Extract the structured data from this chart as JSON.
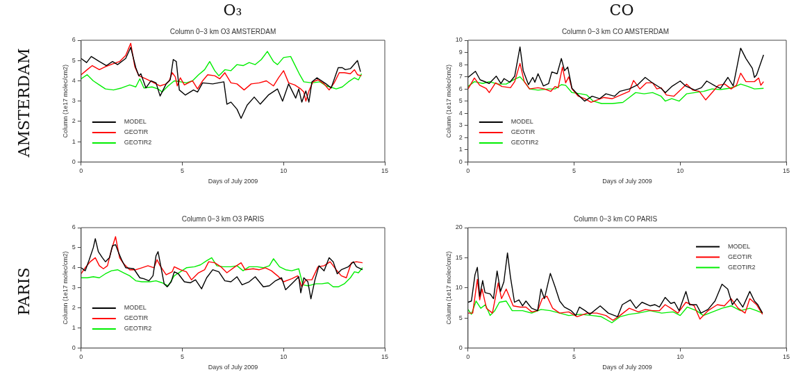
{
  "chart_data": [
    {
      "type": "line",
      "title": "Column 0−3 km O3 AMSTERDAM",
      "xlabel": "Days of July 2009",
      "ylabel": "Column (1e17 molec/cm2)",
      "xlim": [
        0,
        15
      ],
      "xticks": [
        0,
        5,
        10,
        15
      ],
      "ylim": [
        0,
        6
      ],
      "yticks": [
        0,
        1,
        2,
        3,
        4,
        5,
        6
      ],
      "grid": false,
      "legend": "bottom left",
      "marker": "none",
      "line_style": "solid",
      "annotations": [
        "O₃",
        "AMSTERDAM"
      ],
      "series": [
        {
          "name": "MODEL",
          "color": "#000000",
          "x": [
            0,
            0.27,
            0.5,
            0.9,
            1.25,
            1.55,
            1.8,
            2.2,
            2.45,
            2.7,
            2.85,
            2.95,
            3.2,
            3.45,
            3.7,
            3.9,
            4.2,
            4.4,
            4.55,
            4.7,
            4.85,
            5.15,
            5.55,
            5.75,
            6.0,
            6.5,
            7.05,
            7.2,
            7.4,
            7.7,
            7.9,
            8.2,
            8.55,
            8.85,
            9.25,
            9.7,
            9.95,
            10.25,
            10.6,
            10.75,
            10.9,
            11.1,
            11.25,
            11.4,
            11.65,
            12.1,
            12.35,
            12.7,
            12.9,
            13.05,
            13.3,
            13.65,
            13.8
          ],
          "values": [
            5.1,
            4.9,
            5.2,
            4.95,
            4.75,
            4.95,
            4.8,
            5.1,
            5.65,
            4.65,
            4.25,
            4.35,
            3.65,
            4.0,
            3.9,
            3.25,
            3.85,
            4.05,
            5.05,
            4.95,
            3.55,
            3.3,
            3.55,
            3.45,
            3.9,
            3.85,
            3.95,
            2.85,
            2.95,
            2.6,
            2.15,
            2.8,
            3.2,
            2.85,
            3.3,
            3.6,
            3.0,
            3.85,
            3.15,
            3.6,
            2.95,
            3.5,
            2.95,
            3.95,
            4.15,
            3.85,
            3.65,
            4.65,
            4.65,
            4.55,
            4.6,
            5.0,
            4.45
          ]
        },
        {
          "name": "GEOTIR",
          "color": "#ff0000",
          "x": [
            0,
            0.3,
            0.55,
            0.9,
            1.2,
            1.6,
            1.9,
            2.2,
            2.45,
            2.65,
            2.85,
            3.2,
            3.5,
            3.9,
            4.2,
            4.35,
            4.5,
            4.65,
            4.75,
            4.9,
            5.1,
            5.5,
            5.75,
            6.0,
            6.25,
            6.6,
            6.85,
            7.1,
            7.4,
            7.7,
            8.05,
            8.4,
            8.8,
            9.15,
            9.5,
            9.75,
            10.0,
            10.25,
            10.55,
            10.85,
            11.0,
            11.1,
            11.25,
            11.45,
            11.7,
            12.0,
            12.25,
            12.5,
            12.75,
            13.0,
            13.3,
            13.5,
            13.65,
            13.85
          ],
          "values": [
            4.3,
            4.55,
            4.75,
            4.55,
            4.7,
            4.85,
            4.95,
            5.25,
            5.85,
            4.7,
            4.25,
            4.1,
            3.95,
            3.75,
            3.85,
            4.0,
            4.4,
            4.2,
            3.75,
            4.15,
            3.8,
            4.0,
            3.6,
            4.0,
            4.3,
            4.25,
            4.1,
            4.4,
            3.9,
            3.85,
            3.55,
            3.85,
            3.9,
            4.0,
            3.75,
            4.15,
            4.5,
            3.9,
            3.8,
            3.6,
            3.45,
            3.0,
            3.5,
            3.95,
            4.05,
            3.85,
            3.55,
            3.9,
            4.4,
            4.4,
            4.35,
            4.55,
            4.3,
            4.25
          ]
        },
        {
          "name": "GEOTIR2",
          "color": "#00ee00",
          "x": [
            0,
            0.3,
            0.6,
            0.9,
            1.2,
            1.6,
            2.0,
            2.4,
            2.7,
            2.9,
            3.1,
            3.5,
            3.8,
            4.0,
            4.3,
            4.6,
            4.9,
            5.2,
            5.5,
            5.8,
            6.1,
            6.35,
            6.6,
            6.8,
            7.1,
            7.4,
            7.7,
            8.0,
            8.3,
            8.6,
            8.9,
            9.2,
            9.5,
            9.7,
            10.0,
            10.35,
            10.55,
            10.8,
            11.0,
            11.4,
            11.8,
            12.1,
            12.3,
            12.6,
            12.9,
            13.2,
            13.5,
            13.7,
            13.85
          ],
          "values": [
            4.1,
            4.3,
            4.0,
            3.8,
            3.6,
            3.55,
            3.65,
            3.8,
            3.7,
            4.1,
            3.65,
            3.7,
            3.6,
            3.45,
            3.75,
            4.0,
            3.95,
            3.9,
            4.0,
            4.3,
            4.55,
            4.95,
            4.5,
            4.25,
            4.55,
            4.5,
            4.8,
            4.75,
            4.9,
            4.8,
            5.05,
            5.45,
            4.95,
            4.8,
            5.15,
            5.2,
            4.8,
            4.3,
            3.95,
            3.9,
            3.95,
            3.75,
            3.7,
            3.6,
            3.7,
            3.95,
            4.15,
            4.05,
            4.35
          ]
        }
      ]
    },
    {
      "type": "line",
      "title": "Column 0−3 km CO AMSTERDAM",
      "xlabel": "Days of July 2009",
      "ylabel": "Column (1e17 molec/cm2)",
      "xlim": [
        0,
        15
      ],
      "xticks": [
        0,
        5,
        10,
        15
      ],
      "ylim": [
        0,
        10
      ],
      "yticks": [
        0,
        1,
        2,
        3,
        4,
        5,
        6,
        7,
        8,
        9,
        10
      ],
      "grid": false,
      "legend": "bottom left",
      "marker": "none",
      "line_style": "solid",
      "annotations": [
        "CO"
      ],
      "series": [
        {
          "name": "MODEL",
          "color": "#000000",
          "x": [
            0,
            0.35,
            0.57,
            1.0,
            1.33,
            1.55,
            1.7,
            1.97,
            2.2,
            2.45,
            2.6,
            2.85,
            3.05,
            3.15,
            3.3,
            3.55,
            3.8,
            3.95,
            4.2,
            4.4,
            4.55,
            4.7,
            4.9,
            5.2,
            5.5,
            5.85,
            6.2,
            6.5,
            6.9,
            7.15,
            7.6,
            8.0,
            8.35,
            8.65,
            9.1,
            9.3,
            9.6,
            10.0,
            10.25,
            10.7,
            11.0,
            11.25,
            11.65,
            11.9,
            12.25,
            12.5,
            12.85,
            13.1,
            13.4,
            13.5,
            13.6,
            13.93
          ],
          "values": [
            6.95,
            7.45,
            6.75,
            6.45,
            7.05,
            6.45,
            6.85,
            6.55,
            7.05,
            9.45,
            7.5,
            6.35,
            6.95,
            6.55,
            7.25,
            6.25,
            6.45,
            7.4,
            7.25,
            8.5,
            7.5,
            7.8,
            6.05,
            5.5,
            5.0,
            5.4,
            5.2,
            5.6,
            5.4,
            5.8,
            6.0,
            6.35,
            6.95,
            6.55,
            6.05,
            5.7,
            6.2,
            6.65,
            6.25,
            5.9,
            6.1,
            6.65,
            6.25,
            6.05,
            6.95,
            6.25,
            9.35,
            8.5,
            7.7,
            6.95,
            7.15,
            8.8
          ]
        },
        {
          "name": "GEOTIR",
          "color": "#ff0000",
          "x": [
            0,
            0.3,
            0.55,
            0.85,
            1.0,
            1.3,
            1.6,
            2.0,
            2.2,
            2.45,
            2.65,
            2.9,
            3.3,
            3.6,
            3.9,
            4.1,
            4.25,
            4.45,
            4.6,
            4.75,
            4.9,
            5.2,
            5.5,
            5.8,
            6.1,
            6.4,
            6.8,
            7.2,
            7.6,
            7.8,
            8.1,
            8.4,
            8.7,
            8.9,
            9.1,
            9.35,
            9.7,
            10.0,
            10.3,
            10.6,
            10.9,
            11.2,
            11.5,
            11.8,
            12.1,
            12.4,
            12.65,
            12.85,
            13.1,
            13.5,
            13.7,
            13.8,
            13.93
          ],
          "values": [
            6.0,
            6.9,
            6.3,
            6.05,
            5.7,
            6.5,
            6.2,
            6.1,
            6.6,
            8.1,
            6.6,
            6.0,
            6.1,
            6.0,
            5.8,
            6.2,
            6.1,
            7.8,
            6.5,
            7.0,
            6.0,
            5.4,
            5.2,
            4.9,
            5.1,
            5.3,
            5.2,
            5.5,
            5.8,
            6.7,
            6.0,
            6.5,
            6.5,
            6.0,
            6.1,
            5.5,
            5.4,
            5.9,
            6.4,
            5.9,
            5.8,
            5.1,
            5.7,
            6.3,
            6.4,
            6.0,
            6.3,
            7.3,
            6.6,
            6.6,
            6.9,
            6.3,
            6.6
          ]
        },
        {
          "name": "GEOTIR2",
          "color": "#00ee00",
          "x": [
            0,
            0.3,
            0.7,
            1.0,
            1.4,
            1.8,
            2.2,
            2.45,
            2.7,
            2.9,
            3.3,
            3.8,
            4.1,
            4.4,
            4.6,
            4.9,
            5.3,
            5.6,
            5.9,
            6.3,
            6.8,
            7.3,
            7.6,
            7.9,
            8.3,
            8.7,
            9.1,
            9.3,
            9.6,
            9.95,
            10.3,
            10.7,
            11.1,
            11.5,
            11.9,
            12.3,
            12.6,
            12.85,
            13.2,
            13.5,
            13.93
          ],
          "values": [
            6.2,
            6.6,
            6.45,
            6.6,
            6.4,
            6.4,
            6.8,
            7.0,
            6.5,
            6.0,
            5.9,
            6.0,
            6.0,
            6.35,
            6.3,
            5.7,
            5.6,
            5.5,
            5.0,
            4.8,
            4.8,
            4.9,
            5.3,
            5.7,
            5.6,
            5.7,
            5.4,
            5.0,
            5.2,
            5.0,
            5.6,
            5.7,
            5.8,
            6.0,
            5.95,
            6.05,
            6.2,
            6.4,
            6.2,
            6.0,
            6.05
          ]
        }
      ]
    },
    {
      "type": "line",
      "title": "Column 0−3 km O3 PARIS",
      "xlabel": "Days of July 2009",
      "ylabel": "Column (1e17 molec/cm2)",
      "xlim": [
        0,
        15
      ],
      "xticks": [
        0,
        5,
        10,
        15
      ],
      "ylim": [
        0,
        6
      ],
      "yticks": [
        0,
        1,
        2,
        3,
        4,
        5,
        6
      ],
      "grid": false,
      "legend": "bottom left",
      "marker": "none",
      "line_style": "solid",
      "annotations": [
        "PARIS"
      ],
      "series": [
        {
          "name": "MODEL",
          "color": "#000000",
          "x": [
            0,
            0.2,
            0.4,
            0.6,
            0.7,
            0.85,
            1.05,
            1.2,
            1.4,
            1.55,
            1.7,
            1.85,
            2.0,
            2.2,
            2.6,
            2.9,
            3.1,
            3.35,
            3.55,
            3.7,
            3.8,
            3.95,
            4.1,
            4.25,
            4.45,
            4.6,
            4.8,
            5.1,
            5.4,
            5.65,
            5.95,
            6.2,
            6.5,
            6.8,
            7.1,
            7.4,
            7.7,
            7.95,
            8.3,
            8.6,
            8.8,
            9.0,
            9.3,
            9.6,
            9.9,
            10.1,
            10.4,
            10.75,
            10.85,
            11.0,
            11.2,
            11.35,
            11.55,
            11.75,
            12.0,
            12.25,
            12.45,
            12.65,
            12.85,
            13.2,
            13.45,
            13.6,
            13.9
          ],
          "values": [
            4.0,
            3.85,
            4.4,
            5.0,
            5.45,
            4.8,
            4.5,
            4.3,
            4.5,
            5.1,
            5.15,
            4.75,
            4.4,
            4.0,
            3.95,
            3.5,
            3.45,
            3.35,
            3.6,
            4.6,
            4.8,
            4.0,
            3.2,
            3.05,
            3.3,
            3.8,
            3.7,
            3.3,
            3.25,
            3.4,
            2.95,
            3.5,
            3.9,
            3.8,
            3.35,
            3.3,
            3.55,
            3.15,
            3.3,
            3.55,
            3.3,
            3.05,
            3.1,
            3.35,
            3.5,
            2.9,
            3.2,
            3.55,
            2.75,
            3.5,
            3.3,
            2.45,
            3.4,
            4.1,
            3.85,
            4.5,
            4.3,
            3.7,
            3.9,
            4.05,
            4.3,
            4.05,
            3.9
          ]
        },
        {
          "name": "GEOTIR",
          "color": "#ff0000",
          "x": [
            0,
            0.2,
            0.45,
            0.7,
            0.9,
            1.1,
            1.3,
            1.5,
            1.7,
            1.9,
            2.1,
            2.4,
            2.7,
            3.0,
            3.3,
            3.6,
            3.75,
            3.9,
            4.2,
            4.5,
            4.6,
            4.9,
            5.2,
            5.45,
            5.8,
            6.1,
            6.3,
            6.6,
            6.9,
            7.2,
            7.6,
            7.9,
            8.1,
            8.5,
            8.8,
            9.1,
            9.4,
            9.7,
            10.0,
            10.4,
            10.7,
            10.9,
            11.1,
            11.4,
            11.7,
            12.0,
            12.3,
            12.6,
            12.85,
            13.1,
            13.35,
            13.6,
            13.9
          ],
          "values": [
            3.7,
            4.0,
            4.3,
            4.5,
            4.1,
            3.95,
            4.1,
            4.9,
            5.55,
            4.5,
            4.2,
            3.9,
            3.9,
            4.0,
            4.1,
            4.0,
            4.4,
            4.1,
            3.65,
            3.8,
            4.05,
            3.9,
            3.8,
            3.4,
            3.75,
            3.9,
            4.3,
            4.25,
            4.05,
            3.75,
            4.05,
            4.25,
            3.9,
            3.95,
            3.9,
            4.0,
            3.85,
            3.6,
            3.3,
            3.45,
            3.6,
            3.05,
            3.4,
            3.4,
            4.05,
            4.1,
            4.3,
            3.9,
            3.6,
            3.5,
            4.25,
            4.3,
            4.25
          ]
        },
        {
          "name": "GEOTIR2",
          "color": "#00ee00",
          "x": [
            0,
            0.3,
            0.6,
            0.9,
            1.2,
            1.5,
            1.8,
            2.1,
            2.4,
            2.7,
            3.0,
            3.4,
            3.7,
            4.0,
            4.3,
            4.6,
            4.9,
            5.2,
            5.6,
            5.9,
            6.2,
            6.45,
            6.7,
            7.0,
            7.4,
            7.7,
            8.0,
            8.3,
            8.7,
            9.0,
            9.3,
            9.5,
            9.8,
            10.1,
            10.4,
            10.75,
            10.95,
            11.2,
            11.6,
            11.9,
            12.2,
            12.45,
            12.7,
            13.0,
            13.3,
            13.5,
            13.7,
            13.9
          ],
          "values": [
            3.5,
            3.5,
            3.55,
            3.5,
            3.7,
            3.85,
            3.9,
            3.75,
            3.6,
            3.35,
            3.3,
            3.3,
            3.35,
            3.25,
            3.1,
            3.6,
            3.8,
            4.0,
            4.05,
            4.15,
            4.35,
            4.5,
            4.1,
            4.05,
            4.05,
            4.1,
            3.85,
            4.05,
            4.05,
            4.0,
            4.1,
            4.45,
            4.05,
            3.9,
            3.85,
            3.95,
            3.15,
            3.1,
            3.2,
            3.2,
            3.25,
            3.05,
            3.05,
            3.2,
            3.5,
            3.8,
            3.75,
            4.0
          ]
        }
      ]
    },
    {
      "type": "line",
      "title": "Column 0−3 km CO PARIS",
      "xlabel": "Days of July 2009",
      "ylabel": "Column (1e17 molec/cm2)",
      "xlim": [
        0,
        15
      ],
      "xticks": [
        0,
        5,
        10,
        15
      ],
      "ylim": [
        0,
        20
      ],
      "yticks": [
        0,
        5,
        10,
        15,
        20
      ],
      "grid": false,
      "legend": "top right",
      "marker": "none",
      "line_style": "solid",
      "series": [
        {
          "name": "MODEL",
          "color": "#000000",
          "x": [
            0,
            0.16,
            0.33,
            0.44,
            0.55,
            0.69,
            0.8,
            1.04,
            1.2,
            1.37,
            1.53,
            1.69,
            1.86,
            2.0,
            2.19,
            2.4,
            2.57,
            2.73,
            3.0,
            3.28,
            3.44,
            3.6,
            3.88,
            4.1,
            4.32,
            4.54,
            4.86,
            5.08,
            5.25,
            5.52,
            5.74,
            6.23,
            6.61,
            7.05,
            7.27,
            7.65,
            7.92,
            8.2,
            8.58,
            8.8,
            9.02,
            9.29,
            9.56,
            9.73,
            9.95,
            10.27,
            10.44,
            10.77,
            10.98,
            11.31,
            11.64,
            11.97,
            12.24,
            12.46,
            12.68,
            12.95,
            13.28,
            13.5,
            13.66,
            13.88
          ],
          "values": [
            7.6,
            7.8,
            12.2,
            13.4,
            8.6,
            11.2,
            9.2,
            9.0,
            8.2,
            12.8,
            9.4,
            11.0,
            15.8,
            11.8,
            7.6,
            8.0,
            7.0,
            7.8,
            6.6,
            6.2,
            9.8,
            8.2,
            12.4,
            10.2,
            7.8,
            6.8,
            6.2,
            5.4,
            6.8,
            6.2,
            5.6,
            7.0,
            5.8,
            5.2,
            7.2,
            8.0,
            6.6,
            7.6,
            7.0,
            7.2,
            6.8,
            8.4,
            7.4,
            7.6,
            6.2,
            9.4,
            7.2,
            7.2,
            5.8,
            6.4,
            7.8,
            10.6,
            9.8,
            7.2,
            8.2,
            6.8,
            9.4,
            7.8,
            7.2,
            5.8
          ]
        },
        {
          "name": "GEOTIR",
          "color": "#ff0000",
          "x": [
            0,
            0.22,
            0.44,
            0.55,
            0.66,
            0.87,
            1.15,
            1.42,
            1.58,
            1.8,
            2.13,
            2.46,
            2.73,
            3.0,
            3.28,
            3.5,
            3.72,
            3.99,
            4.32,
            4.75,
            5.14,
            5.63,
            6.07,
            6.5,
            6.83,
            7.16,
            7.6,
            8.03,
            8.36,
            8.69,
            9.02,
            9.29,
            9.56,
            9.89,
            10.27,
            10.66,
            10.93,
            11.31,
            11.75,
            12.08,
            12.4,
            12.73,
            13.06,
            13.28,
            13.6,
            13.88
          ],
          "values": [
            5.8,
            5.8,
            11.4,
            8.0,
            9.8,
            6.6,
            5.8,
            10.8,
            8.2,
            9.8,
            7.0,
            6.8,
            6.8,
            6.0,
            6.2,
            8.2,
            8.6,
            6.6,
            5.8,
            6.0,
            5.2,
            5.8,
            5.8,
            5.4,
            4.6,
            5.4,
            6.6,
            6.0,
            6.4,
            6.2,
            6.2,
            7.2,
            6.6,
            5.8,
            7.6,
            7.0,
            4.8,
            6.2,
            7.2,
            7.0,
            8.2,
            6.6,
            5.8,
            8.2,
            7.2,
            5.6
          ]
        },
        {
          "name": "GEOTIR2",
          "color": "#00ee00",
          "x": [
            0,
            0.16,
            0.38,
            0.6,
            0.82,
            1.04,
            1.26,
            1.48,
            1.8,
            2.08,
            2.57,
            3.0,
            3.44,
            3.88,
            4.32,
            4.75,
            5.3,
            5.85,
            6.28,
            6.78,
            7.16,
            7.6,
            8.03,
            8.58,
            9.13,
            9.67,
            10.0,
            10.33,
            10.77,
            11.09,
            11.53,
            11.97,
            12.4,
            12.84,
            13.28,
            13.6,
            13.88
          ],
          "values": [
            6.4,
            5.6,
            7.8,
            6.6,
            7.2,
            5.4,
            6.2,
            7.6,
            7.8,
            6.2,
            6.2,
            5.8,
            6.4,
            6.2,
            5.8,
            5.4,
            5.6,
            5.4,
            5.2,
            4.2,
            5.2,
            5.6,
            5.8,
            6.2,
            5.8,
            6.0,
            5.4,
            6.8,
            6.2,
            5.4,
            6.0,
            6.6,
            7.0,
            6.2,
            6.6,
            6.2,
            5.8
          ]
        }
      ]
    }
  ]
}
